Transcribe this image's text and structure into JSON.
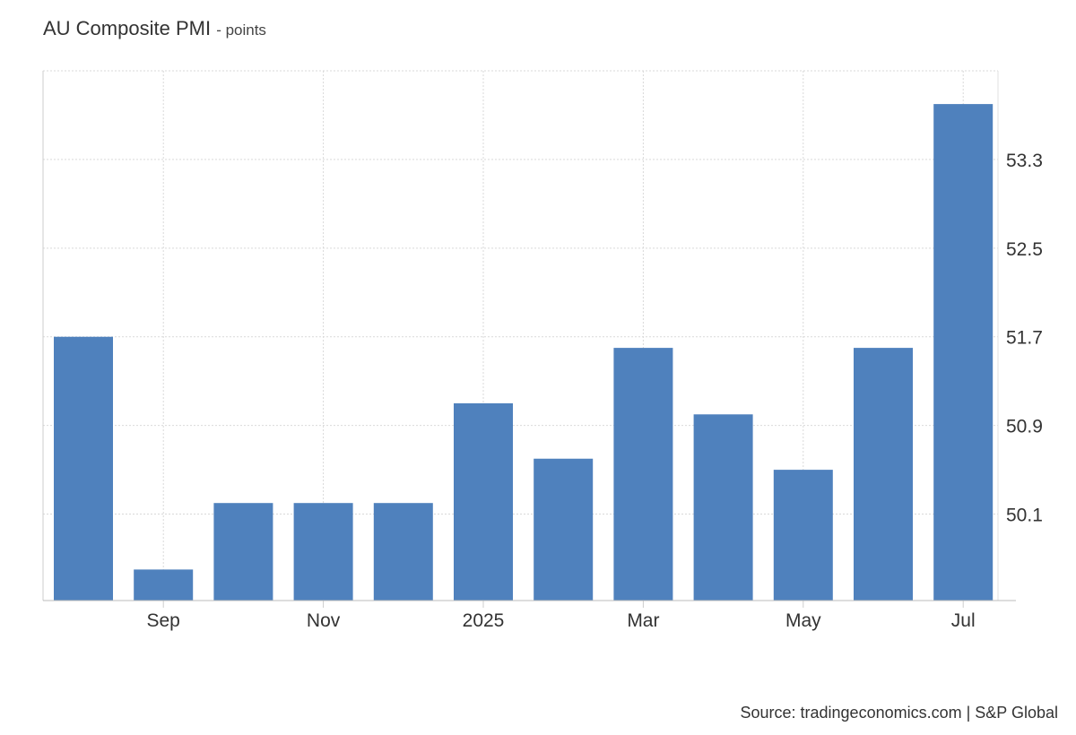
{
  "header": {
    "title": "AU Composite PMI",
    "unit": "- points"
  },
  "footer": {
    "source": "Source: tradingeconomics.com | S&P Global"
  },
  "chart_data": {
    "type": "bar",
    "title": "AU Composite PMI",
    "unit": "points",
    "categories": [
      "2024-08",
      "2024-09",
      "2024-10",
      "2024-11",
      "2024-12",
      "2025-01",
      "2025-02",
      "2025-03",
      "2025-04",
      "2025-05",
      "2025-06",
      "2025-07"
    ],
    "values": [
      51.7,
      49.6,
      50.2,
      50.2,
      50.2,
      51.1,
      50.6,
      51.6,
      51.0,
      50.5,
      51.6,
      53.8
    ],
    "x_tick_labels": [
      {
        "index": 1,
        "label": "Sep"
      },
      {
        "index": 3,
        "label": "Nov"
      },
      {
        "index": 5,
        "label": "2025"
      },
      {
        "index": 7,
        "label": "Mar"
      },
      {
        "index": 9,
        "label": "May"
      },
      {
        "index": 11,
        "label": "Jul"
      }
    ],
    "y_ticks": [
      "50.1",
      "50.9",
      "51.7",
      "52.5",
      "53.3"
    ],
    "ylim": [
      49.32,
      54.1
    ],
    "y_axis_side": "right",
    "grid": true,
    "bar_color": "#4f81bd"
  }
}
